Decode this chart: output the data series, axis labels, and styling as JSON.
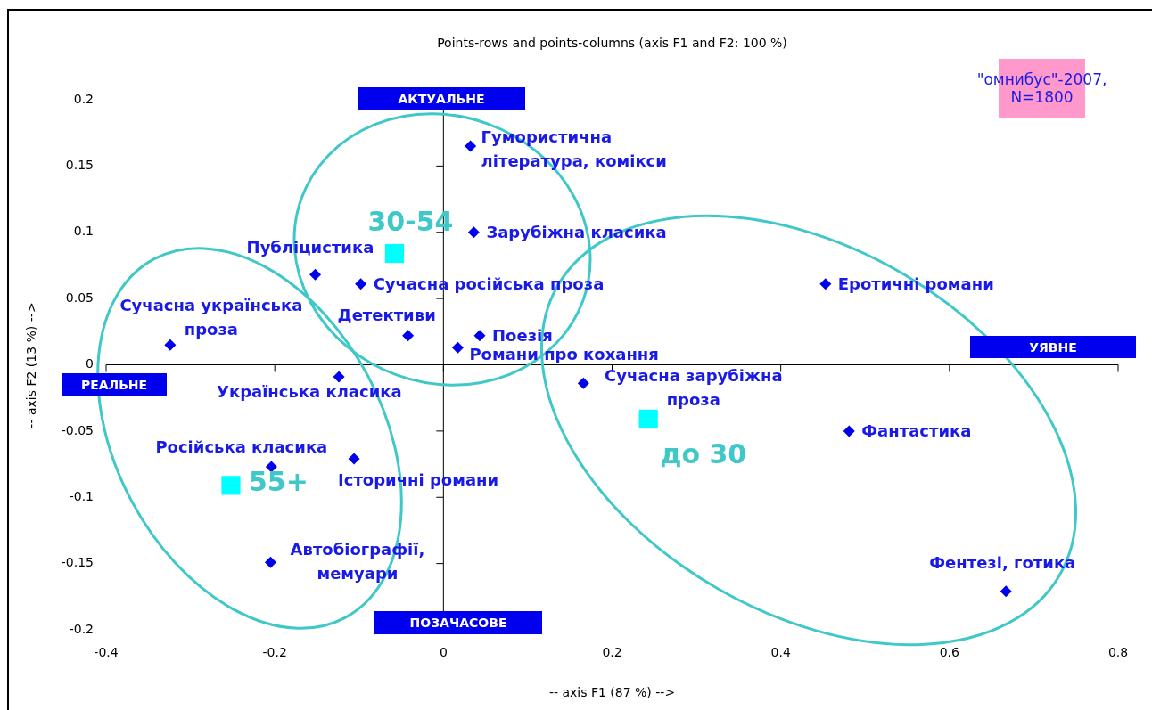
{
  "chart_data": {
    "type": "scatter",
    "title": "Points-rows and points-columns (axis F1 and F2: 100 %)",
    "xlabel": "-- axis F1 (87 %) -->",
    "ylabel": "-- axis F2 (13 %) -->",
    "xlim": [
      -0.4,
      0.8
    ],
    "xticks": [
      -0.4,
      -0.2,
      0,
      0.2,
      0.4,
      0.6,
      0.8
    ],
    "ylim": [
      -0.2,
      0.2
    ],
    "yticks": [
      -0.2,
      -0.15,
      -0.1,
      -0.05,
      0,
      0.05,
      0.1,
      0.15,
      0.2
    ],
    "annotations": [
      "АКТУАЛЬНЕ",
      "ПОЗАЧАСОВЕ",
      "РЕАЛЬНЕ",
      "УЯВНЕ",
      "\"омнибус\"-2007, N=1800"
    ],
    "series": [
      {
        "name": "Гумористична література, комікси",
        "color": "#0000ee",
        "marker": "diamond",
        "x": [
          0.032
        ],
        "values": [
          0.165
        ]
      },
      {
        "name": "Зарубіжна класика",
        "color": "#0000ee",
        "marker": "diamond",
        "x": [
          0.036
        ],
        "values": [
          0.1
        ]
      },
      {
        "name": "Публіцистика",
        "color": "#0000ee",
        "marker": "diamond",
        "x": [
          -0.152
        ],
        "values": [
          0.068
        ]
      },
      {
        "name": "Сучасна російська проза",
        "color": "#0000ee",
        "marker": "diamond",
        "x": [
          -0.098
        ],
        "values": [
          0.061
        ]
      },
      {
        "name": "Сучасна українська проза",
        "color": "#0000ee",
        "marker": "diamond",
        "x": [
          -0.324
        ],
        "values": [
          0.015
        ]
      },
      {
        "name": "Детективи",
        "color": "#0000ee",
        "marker": "diamond",
        "x": [
          -0.042
        ],
        "values": [
          0.022
        ]
      },
      {
        "name": "Поезія",
        "color": "#0000ee",
        "marker": "diamond",
        "x": [
          0.043
        ],
        "values": [
          0.022
        ]
      },
      {
        "name": "Романи про кохання",
        "color": "#0000ee",
        "marker": "diamond",
        "x": [
          0.017
        ],
        "values": [
          0.013
        ]
      },
      {
        "name": "Українська класика",
        "color": "#0000ee",
        "marker": "diamond",
        "x": [
          -0.124
        ],
        "values": [
          -0.009
        ]
      },
      {
        "name": "Сучасна зарубіжна проза",
        "color": "#0000ee",
        "marker": "diamond",
        "x": [
          0.166
        ],
        "values": [
          -0.014
        ]
      },
      {
        "name": "Еротичні романи",
        "color": "#0000ee",
        "marker": "diamond",
        "x": [
          0.453
        ],
        "values": [
          0.061
        ]
      },
      {
        "name": "Фантастика",
        "color": "#0000ee",
        "marker": "diamond",
        "x": [
          0.481
        ],
        "values": [
          -0.05
        ]
      },
      {
        "name": "Російська класика",
        "color": "#0000ee",
        "marker": "diamond",
        "x": [
          -0.204
        ],
        "values": [
          -0.077
        ]
      },
      {
        "name": "Історичні романи",
        "color": "#0000ee",
        "marker": "diamond",
        "x": [
          -0.106
        ],
        "values": [
          -0.071
        ]
      },
      {
        "name": "Автобіографії, мемуари",
        "color": "#0000ee",
        "marker": "diamond",
        "x": [
          -0.205
        ],
        "values": [
          -0.149
        ]
      },
      {
        "name": "Фентезі, готика",
        "color": "#0000ee",
        "marker": "diamond",
        "x": [
          0.667
        ],
        "values": [
          -0.171
        ]
      },
      {
        "name": "30-54",
        "color": "#00ffff",
        "marker": "square",
        "x": [
          -0.058
        ],
        "values": [
          0.084
        ]
      },
      {
        "name": "до 30",
        "color": "#00ffff",
        "marker": "square",
        "x": [
          0.243
        ],
        "values": [
          -0.041
        ]
      },
      {
        "name": "55+",
        "color": "#00ffff",
        "marker": "square",
        "x": [
          -0.252
        ],
        "values": [
          -0.091
        ]
      }
    ]
  }
}
